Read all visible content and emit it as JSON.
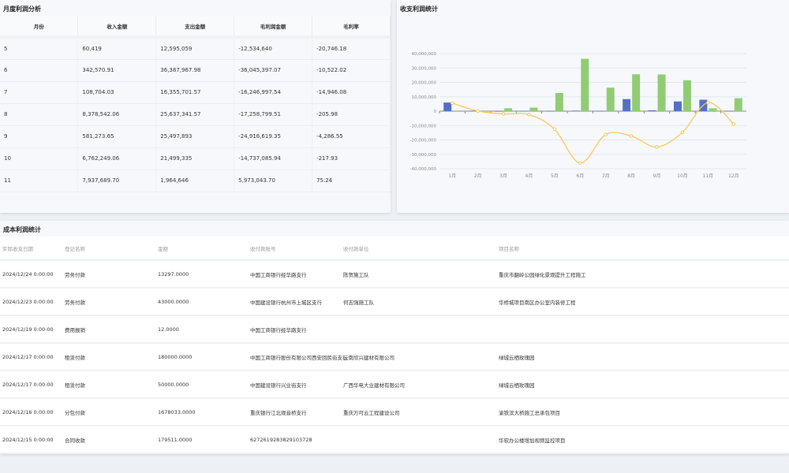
{
  "profit_table": {
    "title": "月度利润分析",
    "headers": [
      "月份",
      "收入金额",
      "支出金额",
      "毛利润金额",
      "毛利率"
    ],
    "rows": [
      [
        "5",
        "60,419",
        "12,595,059",
        "-12,534,640",
        "-20,746.18"
      ],
      [
        "6",
        "342,570.91",
        "36,387,967.98",
        "-36,045,397.07",
        "-10,522.02"
      ],
      [
        "7",
        "108,704.03",
        "16,355,701.57",
        "-16,246,997.54",
        "-14,946.08"
      ],
      [
        "8",
        "8,378,542.06",
        "25,637,341.57",
        "-17,258,799.51",
        "-205.98"
      ],
      [
        "9",
        "581,273.65",
        "25,497,893",
        "-24,916,619.35",
        "-4,286.55"
      ],
      [
        "10",
        "6,762,249.06",
        "21,499,335",
        "-14,737,085.94",
        "-217.93"
      ],
      [
        "11",
        "7,937,689.70",
        "1,964,646",
        "5,973,043.70",
        "75.24"
      ]
    ]
  },
  "chart_panel": {
    "title": "收支利润统计"
  },
  "chart_data": {
    "type": "bar",
    "categories": [
      "1月",
      "2月",
      "3月",
      "4月",
      "5月",
      "6月",
      "7月",
      "8月",
      "9月",
      "10月",
      "11月",
      "12月"
    ],
    "ylim": [
      -40000000,
      40000000
    ],
    "yticks": [
      "-40,000,000",
      "-30,000,000",
      "-20,000,000",
      "-10,000,000",
      "0",
      "10,000,000",
      "20,000,000",
      "30,000,000",
      "40,000,000"
    ],
    "grid": true,
    "series": [
      {
        "type": "bar",
        "color": "#5470c6",
        "values": [
          6000000,
          200000,
          0,
          100000,
          60419,
          342571,
          108704,
          8378542,
          581274,
          6762249,
          7937690,
          100000
        ]
      },
      {
        "type": "bar",
        "color": "#91cc75",
        "values": [
          400000,
          0,
          2000000,
          2500000,
          12595059,
          36387968,
          16355702,
          25637342,
          25497893,
          21499335,
          1964646,
          9000000
        ]
      },
      {
        "type": "line",
        "smooth": true,
        "color": "#fac858",
        "values": [
          5600000,
          100000,
          -1900000,
          -2400000,
          -12534640,
          -36045397,
          -16246998,
          -17258800,
          -24916619,
          -14737086,
          5973044,
          -8900000
        ]
      }
    ]
  },
  "cost_table": {
    "title": "成本利润统计",
    "headers": [
      "实际收支日期",
      "登记名称",
      "金额",
      "收付款账号",
      "收付款单位",
      "项目名称"
    ],
    "rows": [
      [
        "2024/12/24 0:00:00",
        "劳务付款",
        "13297.0000",
        "中国工商银行经华路支行",
        "陈贺施工队",
        "重庆市翻岭公园绿化景观提升工程施工"
      ],
      [
        "2024/12/23 0:00:00",
        "劳务付款",
        "43000.0000",
        "中国建设银行杭州市上城区支行",
        "何志强施工队",
        "华桥城项目南区办公室内装修工程"
      ],
      [
        "2024/12/19 0:00:00",
        "费用报销",
        "12.0000",
        "中国工商银行经华路支行",
        "",
        ""
      ],
      [
        "2024/12/17 0:00:00",
        "租赁付款",
        "180000.0000",
        "中国工商银行股份有限公司西安回民街支行",
        "云南欣兴建材有限公司",
        "绿城云栖玫瑰园"
      ],
      [
        "2024/12/17 0:00:00",
        "租赁付款",
        "50000.0000",
        "中国建设银行兴业街支行",
        "广西华电大业建材有限公司",
        "绿城云栖玫瑰园"
      ],
      [
        "2024/12/16 0:00:00",
        "分包付款",
        "1678033.0000",
        "重庆银行江北观音桥支行",
        "重庆万可云工程建设公司",
        "渝铁滨大桥施工总承包项目"
      ],
      [
        "2024/12/15 0:00:00",
        "合同收款",
        "179511.0000",
        "6272619283829103728",
        "",
        "华软办公楼增加视频监控项目"
      ]
    ]
  }
}
